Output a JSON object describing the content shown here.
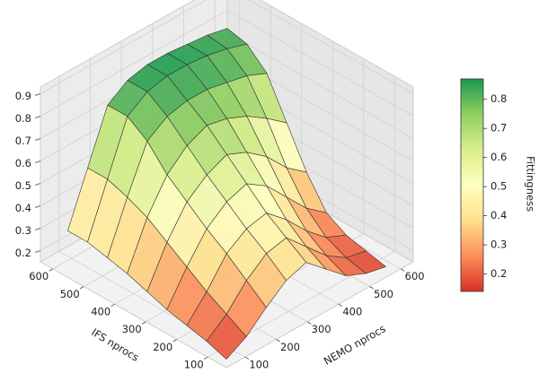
{
  "chart_data": {
    "type": "surface3d",
    "xlabel": "NEMO nprocs",
    "ylabel": "IFS nprocs",
    "colorbar_label": "Fittingness",
    "x": [
      64,
      128,
      192,
      256,
      320,
      384,
      448,
      512,
      576
    ],
    "y": [
      64,
      128,
      192,
      256,
      320,
      384,
      448,
      512,
      576
    ],
    "z": [
      [
        0.15,
        0.2,
        0.28,
        0.35,
        0.38,
        0.3,
        0.22,
        0.18,
        0.16
      ],
      [
        0.18,
        0.25,
        0.35,
        0.42,
        0.44,
        0.35,
        0.26,
        0.2,
        0.18
      ],
      [
        0.2,
        0.3,
        0.42,
        0.48,
        0.5,
        0.42,
        0.32,
        0.24,
        0.2
      ],
      [
        0.22,
        0.36,
        0.48,
        0.55,
        0.58,
        0.52,
        0.42,
        0.32,
        0.25
      ],
      [
        0.25,
        0.42,
        0.55,
        0.62,
        0.66,
        0.62,
        0.55,
        0.45,
        0.38
      ],
      [
        0.28,
        0.48,
        0.62,
        0.7,
        0.74,
        0.72,
        0.68,
        0.62,
        0.55
      ],
      [
        0.3,
        0.52,
        0.72,
        0.78,
        0.8,
        0.8,
        0.78,
        0.76,
        0.72
      ],
      [
        0.32,
        0.55,
        0.78,
        0.84,
        0.86,
        0.86,
        0.85,
        0.83,
        0.8
      ],
      [
        0.32,
        0.55,
        0.78,
        0.84,
        0.86,
        0.86,
        0.85,
        0.84,
        0.82
      ]
    ],
    "xlim": [
      40,
      640
    ],
    "ylim": [
      40,
      640
    ],
    "zlim": [
      0.15,
      0.93
    ],
    "xticks": [
      100,
      200,
      300,
      400,
      500,
      600
    ],
    "yticks": [
      100,
      200,
      300,
      400,
      500,
      600
    ],
    "zticks": [
      0.2,
      0.3,
      0.4,
      0.5,
      0.6,
      0.7,
      0.8,
      0.9
    ],
    "clim": [
      0.14,
      0.87
    ],
    "cticks": [
      0.2,
      0.3,
      0.4,
      0.5,
      0.6,
      0.7,
      0.8
    ],
    "colormap": [
      "#d73027",
      "#fc8d59",
      "#fee08b",
      "#ffffbf",
      "#d9ef8b",
      "#91cf60",
      "#1a9850"
    ],
    "grid": true
  }
}
